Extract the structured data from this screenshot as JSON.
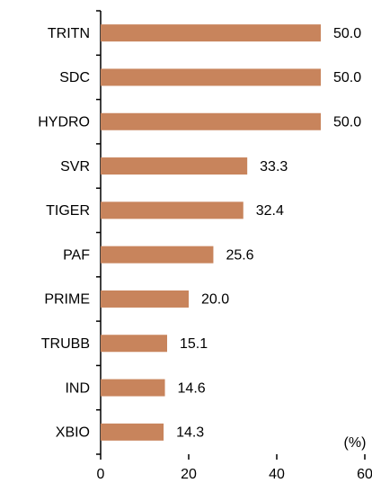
{
  "chart_data": {
    "type": "barh",
    "categories": [
      "TRITN",
      "SDC",
      "HYDRO",
      "SVR",
      "TIGER",
      "PAF",
      "PRIME",
      "TRUBB",
      "IND",
      "XBIO"
    ],
    "values": [
      50.0,
      50.0,
      50.0,
      33.3,
      32.4,
      25.6,
      20.0,
      15.1,
      14.6,
      14.3
    ],
    "value_labels": [
      "50.0",
      "50.0",
      "50.0",
      "33.3",
      "32.4",
      "25.6",
      "20.0",
      "15.1",
      "14.6",
      "14.3"
    ],
    "color": "#c8845c",
    "xlim": [
      0,
      60
    ],
    "xticks": [
      0,
      20,
      40,
      60
    ],
    "unit_label": "(%)"
  }
}
